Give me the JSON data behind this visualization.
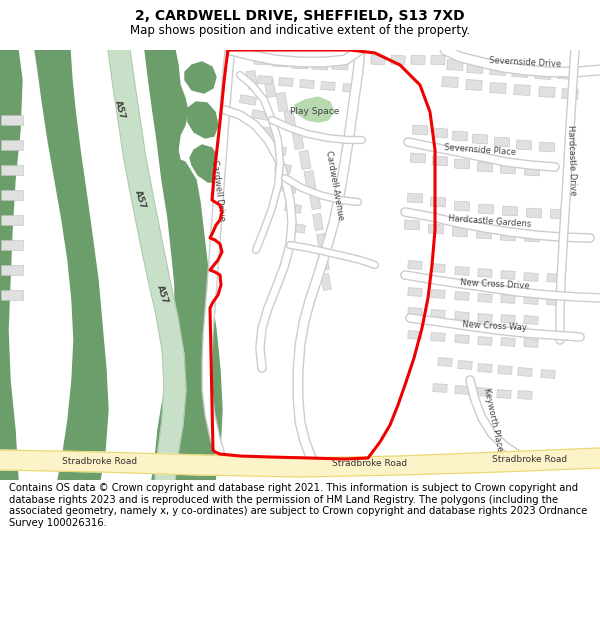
{
  "title": "2, CARDWELL DRIVE, SHEFFIELD, S13 7XD",
  "subtitle": "Map shows position and indicative extent of the property.",
  "footer": "Contains OS data © Crown copyright and database right 2021. This information is subject to Crown copyright and database rights 2023 and is reproduced with the permission of HM Land Registry. The polygons (including the associated geometry, namely x, y co-ordinates) are subject to Crown copyright and database rights 2023 Ordnance Survey 100026316.",
  "map_bg": "#f8f8f8",
  "green_dark": "#6b9e6b",
  "green_light": "#c8dfc8",
  "road_yellow_fill": "#fdf3c8",
  "road_yellow_edge": "#e8d870",
  "building_fill": "#e0e0e0",
  "building_edge": "#c0c0c0",
  "road_fill": "#ffffff",
  "road_edge": "#c8c8c8",
  "red_line": "#ee0000",
  "title_fontsize": 10,
  "subtitle_fontsize": 8.5,
  "footer_fontsize": 7.2
}
